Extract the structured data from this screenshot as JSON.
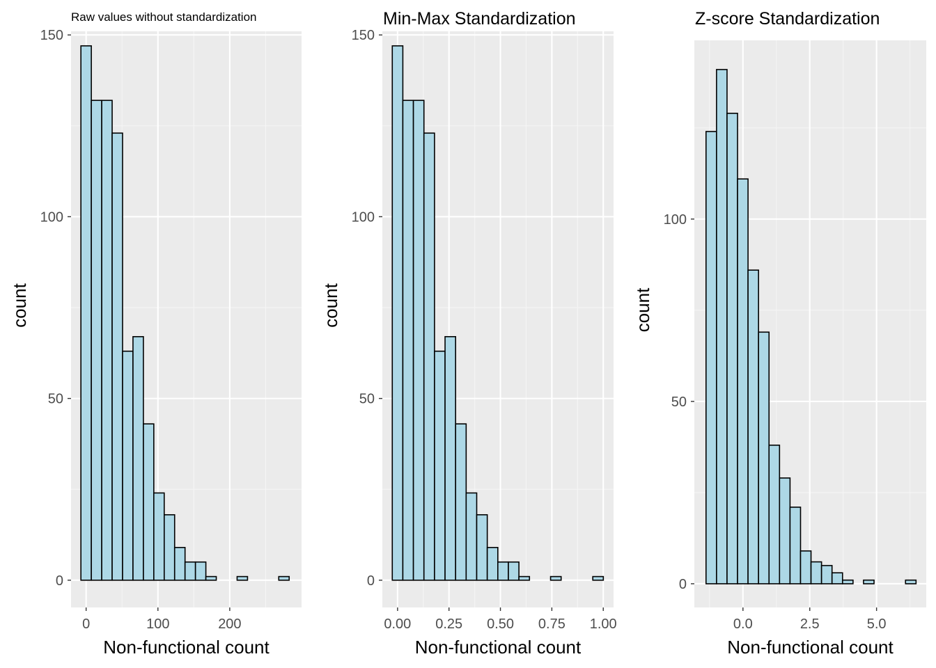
{
  "colors": {
    "panel_background": "#EBEBEB",
    "grid_major": "#FFFFFF",
    "grid_minor": "#F5F5F5",
    "bar_fill": "#ADD8E6",
    "bar_outline": "#000000",
    "tick_label": "#4D4D4D",
    "text": "#000000"
  },
  "chart_data": [
    {
      "type": "bar",
      "title": "Raw values without standardization",
      "xlabel": "Non-functional count",
      "ylabel": "count",
      "grid": true,
      "bin_width": 14.5,
      "bin_centers": [
        0,
        14.5,
        29,
        43.5,
        58,
        72.5,
        87,
        101.5,
        116,
        130.5,
        145,
        159.5,
        174,
        188.5,
        203,
        217.5,
        232,
        246.5,
        261,
        275.5
      ],
      "values": [
        147,
        132,
        132,
        123,
        63,
        67,
        43,
        24,
        18,
        9,
        5,
        5,
        1,
        0,
        0,
        1,
        0,
        0,
        0,
        1
      ],
      "xlim": [
        -21,
        300
      ],
      "ylim": [
        -7.5,
        151
      ],
      "x_ticks": [
        0,
        100,
        200
      ],
      "x_tick_labels": [
        "0",
        "100",
        "200"
      ],
      "y_ticks": [
        0,
        50,
        100,
        150
      ],
      "y_tick_labels": [
        "0",
        "50",
        "100",
        "150"
      ]
    },
    {
      "type": "bar",
      "title": "Min-Max Standardization",
      "xlabel": "Non-functional count",
      "ylabel": "count",
      "grid": true,
      "bin_width": 0.0513,
      "bin_centers": [
        0,
        0.0513,
        0.1026,
        0.1539,
        0.2052,
        0.2565,
        0.3078,
        0.3591,
        0.4104,
        0.4617,
        0.513,
        0.5643,
        0.6156,
        0.6669,
        0.7182,
        0.7695,
        0.8208,
        0.8721,
        0.9234,
        0.9747
      ],
      "values": [
        147,
        132,
        132,
        123,
        63,
        67,
        43,
        24,
        18,
        9,
        5,
        5,
        1,
        0,
        0,
        1,
        0,
        0,
        0,
        1
      ],
      "xlim": [
        -0.074,
        1.05
      ],
      "ylim": [
        -7.5,
        151
      ],
      "x_ticks": [
        0,
        0.25,
        0.5,
        0.75,
        1.0
      ],
      "x_tick_labels": [
        "0.00",
        "0.25",
        "0.50",
        "0.75",
        "1.00"
      ],
      "y_ticks": [
        0,
        50,
        100,
        150
      ],
      "y_tick_labels": [
        "0",
        "50",
        "100",
        "150"
      ]
    },
    {
      "type": "bar",
      "title": "Z-score Standardization",
      "xlabel": "Non-functional count",
      "ylabel": "count",
      "grid": true,
      "bin_width": 0.393,
      "bin_centers": [
        -1.186,
        -0.793,
        -0.4,
        -0.007,
        0.386,
        0.779,
        1.172,
        1.565,
        1.958,
        2.351,
        2.744,
        3.137,
        3.53,
        3.923,
        4.316,
        4.709,
        5.102,
        5.495,
        5.888,
        6.281
      ],
      "values": [
        124,
        141,
        129,
        111,
        86,
        69,
        38,
        29,
        21,
        9,
        6,
        5,
        3,
        1,
        0,
        1,
        0,
        0,
        0,
        1
      ],
      "xlim": [
        -1.82,
        6.86
      ],
      "ylim": [
        -6.5,
        149
      ],
      "x_ticks": [
        0,
        2.5,
        5.0
      ],
      "x_tick_labels": [
        "0.0",
        "2.5",
        "5.0"
      ],
      "y_ticks": [
        0,
        50,
        100
      ],
      "y_tick_labels": [
        "0",
        "50",
        "100"
      ]
    }
  ]
}
